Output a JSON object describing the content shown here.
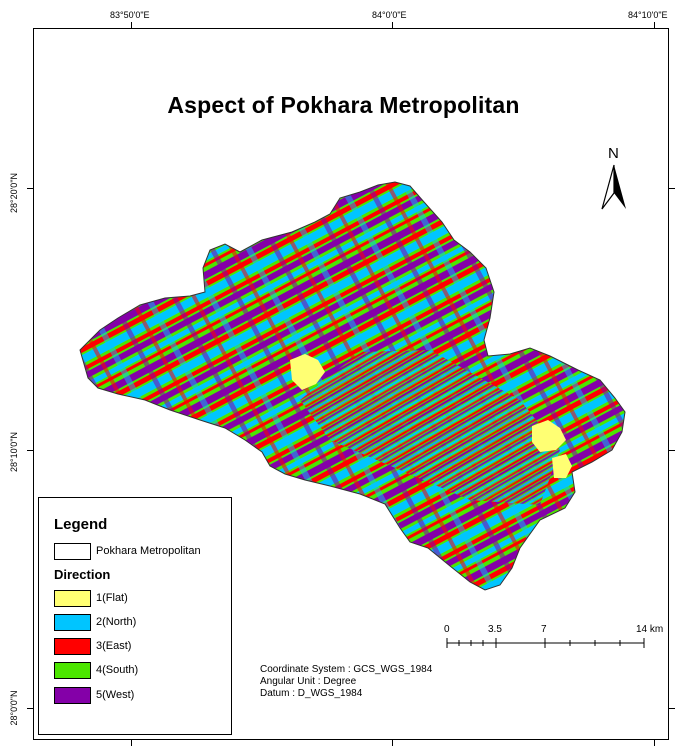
{
  "map": {
    "title": "Aspect of Pokhara Metropolitan",
    "north_label": "N",
    "top_coords": [
      "83°50'0\"E",
      "84°0'0\"E",
      "84°10'0\"E"
    ],
    "left_coords": [
      "28°20'0\"N",
      "28°10'0\"N",
      "28°0'0\"N"
    ]
  },
  "legend": {
    "title": "Legend",
    "boundary_label": "Pokhara Metropolitan",
    "direction_title": "Direction",
    "items": [
      {
        "label": "1(Flat)",
        "color": "#ffff73"
      },
      {
        "label": "2(North)",
        "color": "#00c5ff"
      },
      {
        "label": "3(East)",
        "color": "#ff0000"
      },
      {
        "label": "4(South)",
        "color": "#4ce600"
      },
      {
        "label": "5(West)",
        "color": "#8400a8"
      }
    ]
  },
  "scale": {
    "labels": [
      "0",
      "3.5",
      "7",
      "14 km"
    ]
  },
  "info": {
    "coordinate_system": "Coordinate System : GCS_WGS_1984",
    "angular_unit": "Angular Unit : Degree",
    "datum": "Datum : D_WGS_1984"
  }
}
